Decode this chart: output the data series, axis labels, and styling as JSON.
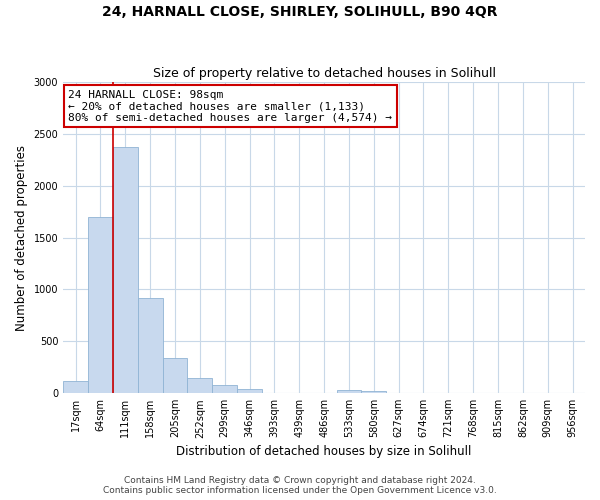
{
  "title": "24, HARNALL CLOSE, SHIRLEY, SOLIHULL, B90 4QR",
  "subtitle": "Size of property relative to detached houses in Solihull",
  "xlabel": "Distribution of detached houses by size in Solihull",
  "ylabel": "Number of detached properties",
  "bar_labels": [
    "17sqm",
    "64sqm",
    "111sqm",
    "158sqm",
    "205sqm",
    "252sqm",
    "299sqm",
    "346sqm",
    "393sqm",
    "439sqm",
    "486sqm",
    "533sqm",
    "580sqm",
    "627sqm",
    "674sqm",
    "721sqm",
    "768sqm",
    "815sqm",
    "862sqm",
    "909sqm",
    "956sqm"
  ],
  "bar_values": [
    120,
    1700,
    2370,
    920,
    340,
    150,
    80,
    40,
    0,
    0,
    0,
    30,
    20,
    0,
    0,
    0,
    0,
    0,
    0,
    0,
    0
  ],
  "bar_color": "#c8d9ee",
  "bar_edge_color": "#90b4d4",
  "vline_color": "#cc0000",
  "annotation_line1": "24 HARNALL CLOSE: 98sqm",
  "annotation_line2": "← 20% of detached houses are smaller (1,133)",
  "annotation_line3": "80% of semi-detached houses are larger (4,574) →",
  "annotation_box_color": "#ffffff",
  "annotation_box_edge": "#cc0000",
  "ylim": [
    0,
    3000
  ],
  "yticks": [
    0,
    500,
    1000,
    1500,
    2000,
    2500,
    3000
  ],
  "footer1": "Contains HM Land Registry data © Crown copyright and database right 2024.",
  "footer2": "Contains public sector information licensed under the Open Government Licence v3.0.",
  "background_color": "#ffffff",
  "grid_color": "#c8d8e8",
  "title_fontsize": 10,
  "subtitle_fontsize": 9,
  "axis_label_fontsize": 8.5,
  "tick_fontsize": 7,
  "annot_fontsize": 8,
  "footer_fontsize": 6.5
}
